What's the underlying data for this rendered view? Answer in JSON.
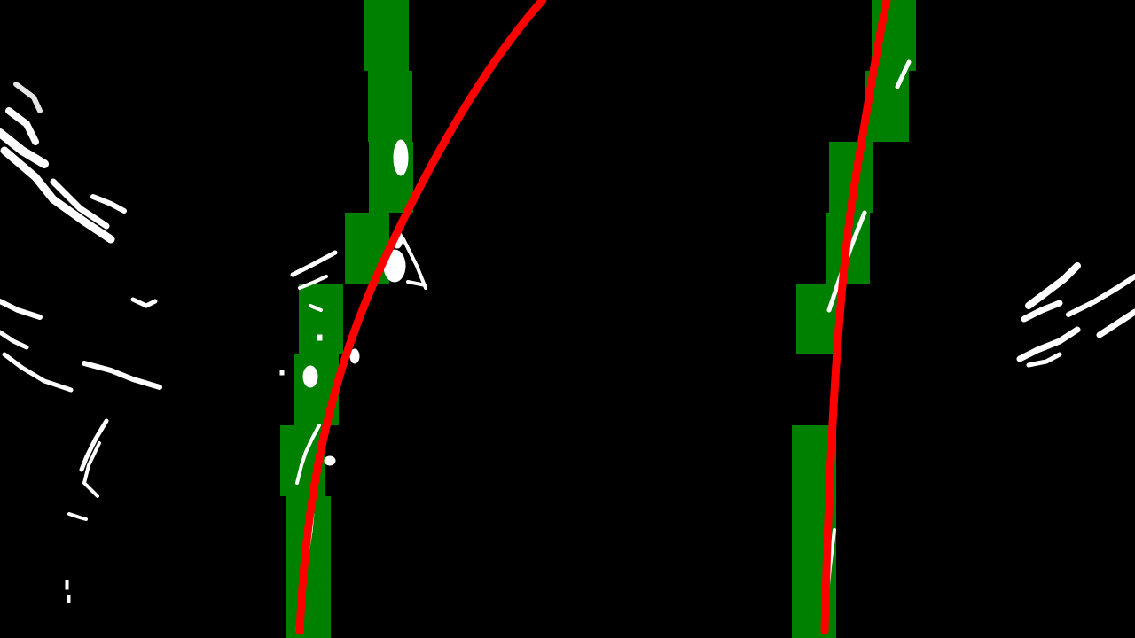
{
  "colors": {
    "background": "#000000",
    "window": "#008000",
    "pixels": "#ffffff",
    "fit": "#ff0000"
  },
  "windows": {
    "left": [
      {
        "level": 1,
        "center_x": 348
      },
      {
        "level": 2,
        "center_x": 341
      },
      {
        "level": 3,
        "center_x": 357
      },
      {
        "level": 4,
        "center_x": 362
      },
      {
        "level": 5,
        "center_x": 414
      },
      {
        "level": 6,
        "center_x": 441
      },
      {
        "level": 7,
        "center_x": 440
      },
      {
        "level": 8,
        "center_x": 436
      }
    ],
    "right": [
      {
        "level": 1,
        "center_x": 918
      },
      {
        "level": 2,
        "center_x": 918
      },
      {
        "level": 4,
        "center_x": 923
      },
      {
        "level": 5,
        "center_x": 956
      },
      {
        "level": 6,
        "center_x": 960
      },
      {
        "level": 7,
        "center_x": 1000
      },
      {
        "level": 8,
        "center_x": 1008
      }
    ]
  }
}
